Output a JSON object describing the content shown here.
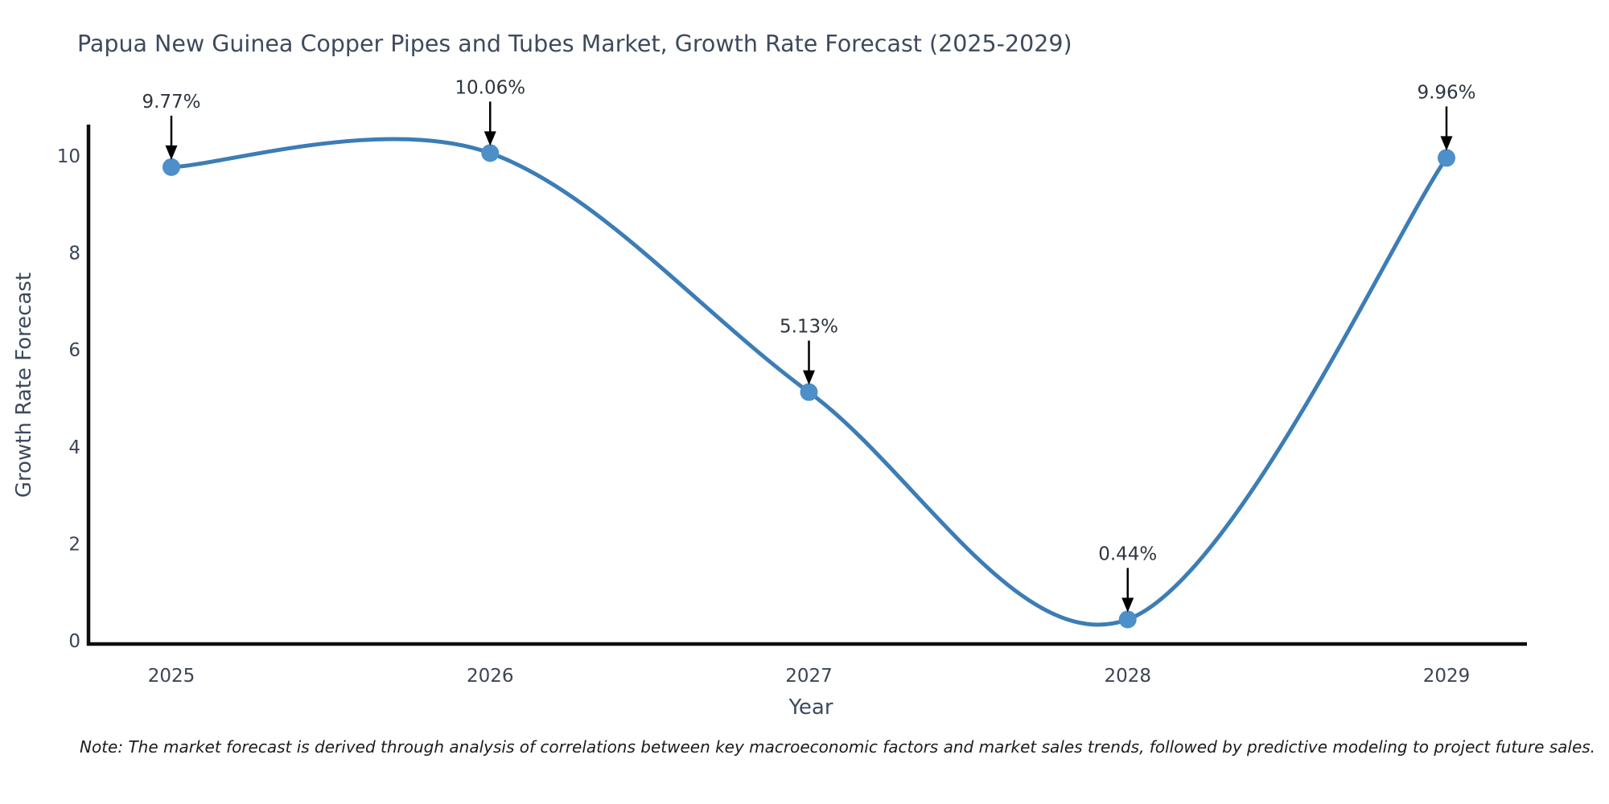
{
  "note": "Note: The market forecast is derived through analysis of correlations between key macroeconomic factors and market sales trends, followed by predictive modeling to project future sales.",
  "chart_data": {
    "type": "line",
    "title": "Papua New Guinea Copper Pipes and Tubes Market, Growth Rate Forecast (2025-2029)",
    "xlabel": "Year",
    "ylabel": "Growth Rate Forecast",
    "categories": [
      "2025",
      "2026",
      "2027",
      "2028",
      "2029"
    ],
    "values": [
      9.77,
      10.06,
      5.13,
      0.44,
      9.96
    ],
    "point_labels": [
      "9.77%",
      "10.06%",
      "5.13%",
      "0.44%",
      "9.96%"
    ],
    "yticks": [
      0,
      2,
      4,
      6,
      8,
      10
    ],
    "ylim": [
      0,
      10.7
    ],
    "grid": false,
    "legend": "none",
    "smoothing": "spline",
    "annotation_style": "value label with downward black arrow onto each marker",
    "colors": {
      "line": "#3c7db5",
      "marker": "#4d8fc9",
      "annotation_arrow": "#000000",
      "annotation_text": "#2e353f",
      "axis": "#0e0e0e",
      "tick_text": "#3c4454",
      "title_text": "#3e4a5c",
      "note_text": "#1c1c1c",
      "background": "#ffffff"
    }
  }
}
